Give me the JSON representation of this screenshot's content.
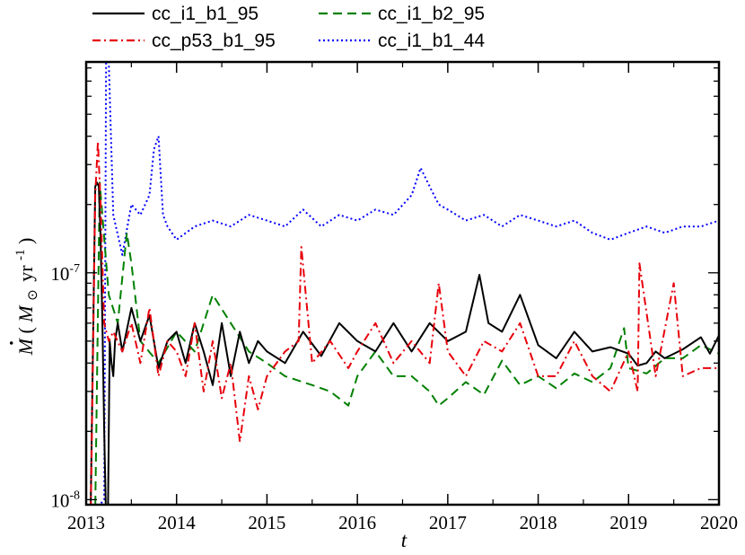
{
  "chart_data": {
    "type": "line",
    "title": "",
    "xlabel": "t",
    "ylabel": {
      "dot": "·",
      "main": "M",
      "open": " (",
      "msub": "M",
      "sun": "⊙",
      "unit": "yr",
      "exp": "-1",
      "close": ")"
    },
    "xlim": [
      2013,
      2020
    ],
    "ylim": [
      9.5e-09,
      8.5e-07
    ],
    "yscale": "log",
    "x_ticks": [
      "2013",
      "2014",
      "2015",
      "2016",
      "2017",
      "2018",
      "2019",
      "2020"
    ],
    "y_ticks": [
      {
        "value": 1e-08,
        "mantissa": "10",
        "exponent": "-8"
      },
      {
        "value": 1e-07,
        "mantissa": "10",
        "exponent": "-7"
      }
    ],
    "legend": {
      "position": "top"
    },
    "series": [
      {
        "name": "cc_i1_b1_95",
        "color": "#000000",
        "dash": "solid",
        "x": [
          2013.0,
          2013.05,
          2013.1,
          2013.12,
          2013.14,
          2013.16,
          2013.18,
          2013.2,
          2013.22,
          2013.24,
          2013.26,
          2013.28,
          2013.3,
          2013.32,
          2013.35,
          2013.4,
          2013.5,
          2013.6,
          2013.7,
          2013.8,
          2013.9,
          2014.0,
          2014.1,
          2014.2,
          2014.3,
          2014.4,
          2014.5,
          2014.6,
          2014.7,
          2014.8,
          2014.9,
          2015.0,
          2015.2,
          2015.4,
          2015.6,
          2015.8,
          2016.0,
          2016.2,
          2016.4,
          2016.6,
          2016.8,
          2017.0,
          2017.2,
          2017.35,
          2017.45,
          2017.6,
          2017.8,
          2018.0,
          2018.2,
          2018.4,
          2018.6,
          2018.8,
          2019.0,
          2019.1,
          2019.2,
          2019.3,
          2019.4,
          2019.6,
          2019.8,
          2019.9,
          2020.0
        ],
        "y": [
          9e-09,
          9e-09,
          2.4e-07,
          2.5e-07,
          2.4e-07,
          1.4e-07,
          6e-08,
          2e-08,
          8e-09,
          8e-09,
          5e-08,
          4e-08,
          3.5e-08,
          5e-08,
          6e-08,
          4.5e-08,
          7e-08,
          5e-08,
          6.5e-08,
          3.8e-08,
          5e-08,
          5.5e-08,
          4e-08,
          6e-08,
          4.5e-08,
          3.2e-08,
          6e-08,
          3.5e-08,
          5.5e-08,
          4e-08,
          5e-08,
          4.5e-08,
          4e-08,
          5.5e-08,
          4.3e-08,
          6e-08,
          5e-08,
          4.5e-08,
          6e-08,
          4.5e-08,
          6e-08,
          5e-08,
          5.5e-08,
          9.8e-08,
          6e-08,
          5.5e-08,
          8e-08,
          4.8e-08,
          4.2e-08,
          5.5e-08,
          4.5e-08,
          4.7e-08,
          4.4e-08,
          3.9e-08,
          4e-08,
          4.5e-08,
          4.2e-08,
          4.6e-08,
          5.2e-08,
          4.4e-08,
          5.3e-08
        ]
      },
      {
        "name": "cc_p53_b1_95",
        "color": "#e8000b",
        "dash": "dashdot",
        "x": [
          2013.0,
          2013.05,
          2013.1,
          2013.13,
          2013.16,
          2013.2,
          2013.25,
          2013.3,
          2013.4,
          2013.5,
          2013.6,
          2013.7,
          2013.8,
          2013.9,
          2014.0,
          2014.1,
          2014.2,
          2014.3,
          2014.4,
          2014.5,
          2014.6,
          2014.7,
          2014.8,
          2014.9,
          2015.0,
          2015.2,
          2015.35,
          2015.38,
          2015.5,
          2015.7,
          2015.9,
          2016.0,
          2016.2,
          2016.4,
          2016.6,
          2016.8,
          2016.9,
          2017.0,
          2017.2,
          2017.4,
          2017.6,
          2017.8,
          2018.0,
          2018.2,
          2018.4,
          2018.6,
          2018.8,
          2019.0,
          2019.1,
          2019.12,
          2019.3,
          2019.5,
          2019.6,
          2019.8,
          2020.0
        ],
        "y": [
          8e-09,
          8e-09,
          2.2e-07,
          3.8e-07,
          2e-07,
          6e-08,
          5e-08,
          5.5e-08,
          4.5e-08,
          6e-08,
          4e-08,
          7e-08,
          3.5e-08,
          5e-08,
          4.5e-08,
          3.5e-08,
          6e-08,
          3e-08,
          5e-08,
          2.8e-08,
          4e-08,
          1.8e-08,
          3.5e-08,
          2.5e-08,
          3.5e-08,
          4.5e-08,
          5e-08,
          1.3e-07,
          4e-08,
          5e-08,
          3.8e-08,
          4.5e-08,
          6e-08,
          4e-08,
          5e-08,
          4e-08,
          9e-08,
          4.5e-08,
          3.5e-08,
          5e-08,
          4.5e-08,
          6e-08,
          3.5e-08,
          3.5e-08,
          5e-08,
          3.5e-08,
          3e-08,
          4.5e-08,
          3e-08,
          1.1e-07,
          3.5e-08,
          9e-08,
          3.5e-08,
          3.8e-08,
          3.8e-08
        ]
      },
      {
        "name": "cc_i1_b2_95",
        "color": "#008000",
        "dash": "dashed",
        "x": [
          2013.0,
          2013.1,
          2013.15,
          2013.25,
          2013.35,
          2013.45,
          2013.5,
          2013.6,
          2013.8,
          2014.0,
          2014.2,
          2014.4,
          2014.6,
          2014.8,
          2015.0,
          2015.2,
          2015.5,
          2015.7,
          2015.9,
          2016.0,
          2016.2,
          2016.4,
          2016.6,
          2016.8,
          2016.9,
          2017.0,
          2017.2,
          2017.4,
          2017.6,
          2017.8,
          2018.0,
          2018.2,
          2018.4,
          2018.6,
          2018.8,
          2018.95,
          2019.0,
          2019.2,
          2019.4,
          2019.6,
          2019.8,
          2020.0
        ],
        "y": [
          9e-09,
          9e-09,
          2.5e-07,
          8e-08,
          6e-08,
          1.5e-07,
          1.1e-07,
          5e-08,
          4e-08,
          5.5e-08,
          4.5e-08,
          8e-08,
          6e-08,
          4.5e-08,
          4e-08,
          3.5e-08,
          3.2e-08,
          3e-08,
          2.6e-08,
          3.5e-08,
          4.5e-08,
          3.5e-08,
          3.5e-08,
          3e-08,
          2.6e-08,
          2.8e-08,
          3.3e-08,
          2.9e-08,
          4.1e-08,
          3.2e-08,
          3.5e-08,
          3.1e-08,
          3.6e-08,
          3.3e-08,
          3.8e-08,
          5.7e-08,
          3.8e-08,
          3.6e-08,
          4.2e-08,
          4.2e-08,
          4.8e-08,
          4.4e-08
        ]
      },
      {
        "name": "cc_i1_b1_44",
        "color": "#0000ff",
        "dash": "dotted",
        "x": [
          2013.0,
          2013.1,
          2013.2,
          2013.22,
          2013.25,
          2013.3,
          2013.4,
          2013.5,
          2013.6,
          2013.7,
          2013.75,
          2013.8,
          2013.85,
          2013.9,
          2014.0,
          2014.2,
          2014.4,
          2014.6,
          2014.8,
          2015.0,
          2015.2,
          2015.4,
          2015.6,
          2015.8,
          2016.0,
          2016.2,
          2016.4,
          2016.6,
          2016.7,
          2016.8,
          2016.9,
          2017.0,
          2017.2,
          2017.4,
          2017.6,
          2017.8,
          2018.0,
          2018.2,
          2018.4,
          2018.6,
          2018.8,
          2019.0,
          2019.2,
          2019.4,
          2019.6,
          2019.8,
          2020.0
        ],
        "y": [
          9e-09,
          9e-09,
          1e-08,
          8.5e-07,
          8.5e-07,
          1.8e-07,
          1.2e-07,
          2e-07,
          1.8e-07,
          2.2e-07,
          3.5e-07,
          4e-07,
          1.8e-07,
          1.6e-07,
          1.4e-07,
          1.6e-07,
          1.7e-07,
          1.6e-07,
          1.8e-07,
          1.7e-07,
          1.6e-07,
          1.9e-07,
          1.6e-07,
          1.8e-07,
          1.7e-07,
          1.9e-07,
          1.8e-07,
          2.2e-07,
          2.9e-07,
          2.4e-07,
          2e-07,
          1.9e-07,
          1.7e-07,
          1.8e-07,
          1.6e-07,
          1.8e-07,
          1.7e-07,
          1.6e-07,
          1.7e-07,
          1.5e-07,
          1.4e-07,
          1.5e-07,
          1.6e-07,
          1.5e-07,
          1.6e-07,
          1.6e-07,
          1.7e-07
        ]
      }
    ]
  }
}
